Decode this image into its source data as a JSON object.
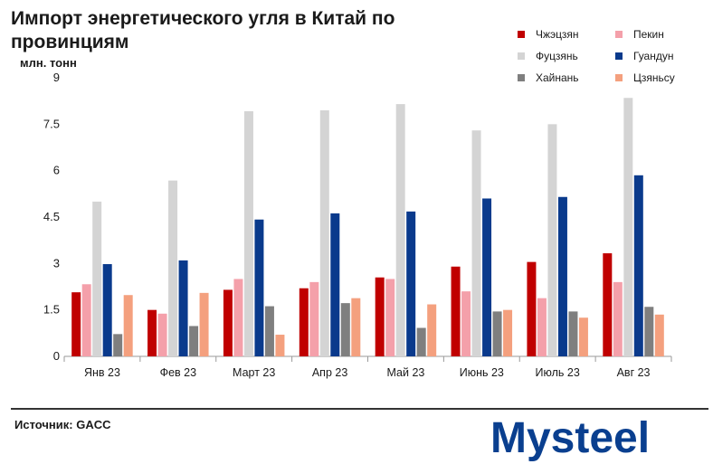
{
  "header": {
    "title": "Импорт энергетического угля в Китай по провинциям",
    "unit": "млн. тонн"
  },
  "source": "Источник: GACC",
  "logo": {
    "text": "Mysteel"
  },
  "chart_data": {
    "type": "bar",
    "title": "Импорт энергетического угля в Китай по провинциям",
    "ylabel": "млн. тонн",
    "xlabel": "",
    "ylim": [
      0,
      9
    ],
    "yticks": [
      0,
      1.5,
      3,
      4.5,
      6,
      7.5,
      9
    ],
    "ytick_labels": [
      "0",
      "1.5",
      "3",
      "4.5",
      "6",
      "7.5",
      "9"
    ],
    "grid": false,
    "legend_position": "top-right",
    "categories": [
      "Янв 23",
      "Фев 23",
      "Март 23",
      "Апр 23",
      "Май 23",
      "Июнь 23",
      "Июль 23",
      "Авг 23"
    ],
    "series": [
      {
        "name": "Чжэцзян",
        "color": "#c00000",
        "values": [
          2.07,
          1.5,
          2.15,
          2.2,
          2.55,
          2.9,
          3.05,
          3.33
        ]
      },
      {
        "name": "Пекин",
        "color": "#f4a0aa",
        "values": [
          2.33,
          1.38,
          2.5,
          2.4,
          2.5,
          2.1,
          1.88,
          2.4
        ]
      },
      {
        "name": "Фуцзянь",
        "color": "#d4d4d4",
        "values": [
          5.0,
          5.68,
          7.92,
          7.95,
          8.15,
          7.3,
          7.5,
          8.35
        ]
      },
      {
        "name": "Гуандун",
        "color": "#0a3a8c",
        "values": [
          2.98,
          3.1,
          4.42,
          4.62,
          4.68,
          5.1,
          5.15,
          5.85
        ]
      },
      {
        "name": "Хайнань",
        "color": "#7f7f7f",
        "values": [
          0.72,
          0.98,
          1.62,
          1.72,
          0.92,
          1.45,
          1.45,
          1.6
        ]
      },
      {
        "name": "Цзяньсу",
        "color": "#f4a07e",
        "values": [
          1.98,
          2.05,
          0.7,
          1.88,
          1.68,
          1.5,
          1.25,
          1.35
        ]
      }
    ]
  }
}
